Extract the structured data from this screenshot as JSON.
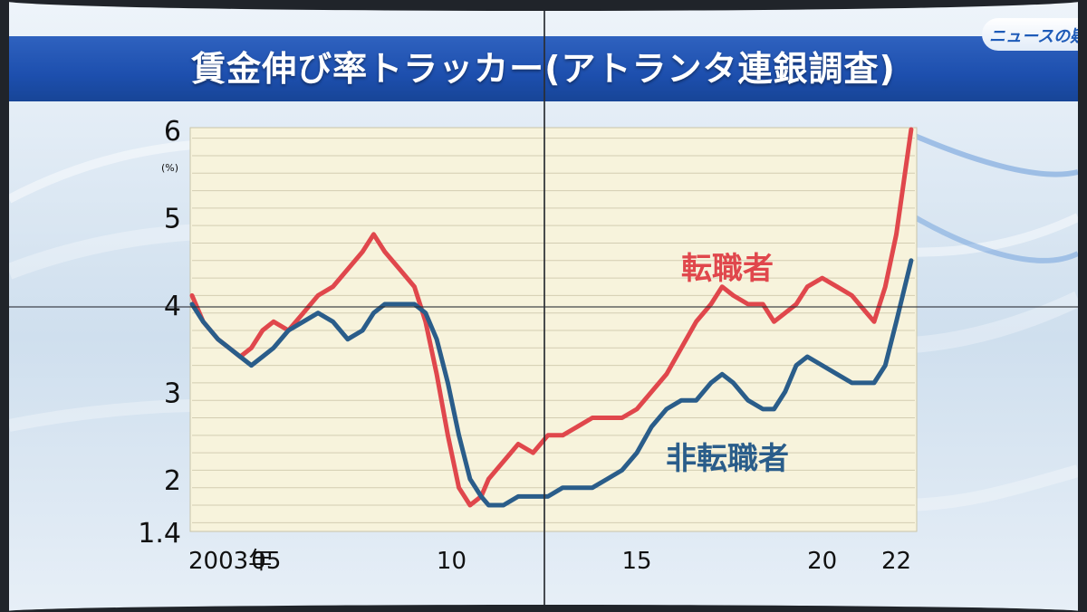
{
  "title": "賃金伸び率トラッカー(アトランタ連銀調査)",
  "logo_text": "ニュースの疑問",
  "chart_data": {
    "type": "line",
    "title": "賃金伸び率トラッカー(アトランタ連銀調査)",
    "unit_label": "(%)",
    "xlim": [
      2003,
      2022.5
    ],
    "ylim": [
      1.4,
      6.0
    ],
    "y_ticks": [
      {
        "value": 6,
        "label": "6"
      },
      {
        "value": 5,
        "label": "5"
      },
      {
        "value": 4,
        "label": "4"
      },
      {
        "value": 3,
        "label": "3"
      },
      {
        "value": 2,
        "label": "2"
      },
      {
        "value": 1.4,
        "label": "1.4"
      }
    ],
    "x_ticks": [
      {
        "value": 2003,
        "label": "2003年"
      },
      {
        "value": 2005,
        "label": "05"
      },
      {
        "value": 2010,
        "label": "10"
      },
      {
        "value": 2015,
        "label": "15"
      },
      {
        "value": 2020,
        "label": "20"
      },
      {
        "value": 2022,
        "label": "22"
      }
    ],
    "grid": "horizontal",
    "series": [
      {
        "name": "転職者",
        "color": "#e0474c",
        "points": [
          [
            2003.0,
            4.1
          ],
          [
            2003.3,
            3.8
          ],
          [
            2003.7,
            3.6
          ],
          [
            2004.0,
            3.5
          ],
          [
            2004.3,
            3.4
          ],
          [
            2004.6,
            3.5
          ],
          [
            2004.9,
            3.7
          ],
          [
            2005.2,
            3.8
          ],
          [
            2005.6,
            3.7
          ],
          [
            2006.0,
            3.9
          ],
          [
            2006.4,
            4.1
          ],
          [
            2006.8,
            4.2
          ],
          [
            2007.2,
            4.4
          ],
          [
            2007.6,
            4.6
          ],
          [
            2007.9,
            4.8
          ],
          [
            2008.2,
            4.6
          ],
          [
            2008.6,
            4.4
          ],
          [
            2009.0,
            4.2
          ],
          [
            2009.3,
            3.8
          ],
          [
            2009.6,
            3.2
          ],
          [
            2009.9,
            2.5
          ],
          [
            2010.2,
            1.9
          ],
          [
            2010.5,
            1.7
          ],
          [
            2010.8,
            1.8
          ],
          [
            2011.0,
            2.0
          ],
          [
            2011.4,
            2.2
          ],
          [
            2011.8,
            2.4
          ],
          [
            2012.2,
            2.3
          ],
          [
            2012.6,
            2.5
          ],
          [
            2013.0,
            2.5
          ],
          [
            2013.4,
            2.6
          ],
          [
            2013.8,
            2.7
          ],
          [
            2014.2,
            2.7
          ],
          [
            2014.6,
            2.7
          ],
          [
            2015.0,
            2.8
          ],
          [
            2015.4,
            3.0
          ],
          [
            2015.8,
            3.2
          ],
          [
            2016.2,
            3.5
          ],
          [
            2016.6,
            3.8
          ],
          [
            2017.0,
            4.0
          ],
          [
            2017.3,
            4.2
          ],
          [
            2017.6,
            4.1
          ],
          [
            2018.0,
            4.0
          ],
          [
            2018.4,
            4.0
          ],
          [
            2018.7,
            3.8
          ],
          [
            2019.0,
            3.9
          ],
          [
            2019.3,
            4.0
          ],
          [
            2019.6,
            4.2
          ],
          [
            2020.0,
            4.3
          ],
          [
            2020.4,
            4.2
          ],
          [
            2020.8,
            4.1
          ],
          [
            2021.2,
            3.9
          ],
          [
            2021.4,
            3.8
          ],
          [
            2021.7,
            4.2
          ],
          [
            2022.0,
            4.8
          ],
          [
            2022.4,
            6.0
          ]
        ]
      },
      {
        "name": "非転職者",
        "color": "#2a5d8a",
        "points": [
          [
            2003.0,
            4.0
          ],
          [
            2003.3,
            3.8
          ],
          [
            2003.7,
            3.6
          ],
          [
            2004.0,
            3.5
          ],
          [
            2004.3,
            3.4
          ],
          [
            2004.6,
            3.3
          ],
          [
            2004.9,
            3.4
          ],
          [
            2005.2,
            3.5
          ],
          [
            2005.6,
            3.7
          ],
          [
            2006.0,
            3.8
          ],
          [
            2006.4,
            3.9
          ],
          [
            2006.8,
            3.8
          ],
          [
            2007.2,
            3.6
          ],
          [
            2007.6,
            3.7
          ],
          [
            2007.9,
            3.9
          ],
          [
            2008.2,
            4.0
          ],
          [
            2008.6,
            4.0
          ],
          [
            2009.0,
            4.0
          ],
          [
            2009.3,
            3.9
          ],
          [
            2009.6,
            3.6
          ],
          [
            2009.9,
            3.1
          ],
          [
            2010.2,
            2.5
          ],
          [
            2010.5,
            2.0
          ],
          [
            2010.8,
            1.8
          ],
          [
            2011.0,
            1.7
          ],
          [
            2011.4,
            1.7
          ],
          [
            2011.8,
            1.8
          ],
          [
            2012.2,
            1.8
          ],
          [
            2012.6,
            1.8
          ],
          [
            2013.0,
            1.9
          ],
          [
            2013.4,
            1.9
          ],
          [
            2013.8,
            1.9
          ],
          [
            2014.2,
            2.0
          ],
          [
            2014.6,
            2.1
          ],
          [
            2015.0,
            2.3
          ],
          [
            2015.4,
            2.6
          ],
          [
            2015.8,
            2.8
          ],
          [
            2016.2,
            2.9
          ],
          [
            2016.6,
            2.9
          ],
          [
            2017.0,
            3.1
          ],
          [
            2017.3,
            3.2
          ],
          [
            2017.6,
            3.1
          ],
          [
            2018.0,
            2.9
          ],
          [
            2018.4,
            2.8
          ],
          [
            2018.7,
            2.8
          ],
          [
            2019.0,
            3.0
          ],
          [
            2019.3,
            3.3
          ],
          [
            2019.6,
            3.4
          ],
          [
            2020.0,
            3.3
          ],
          [
            2020.4,
            3.2
          ],
          [
            2020.8,
            3.1
          ],
          [
            2021.2,
            3.1
          ],
          [
            2021.4,
            3.1
          ],
          [
            2021.7,
            3.3
          ],
          [
            2022.0,
            3.8
          ],
          [
            2022.4,
            4.5
          ]
        ]
      }
    ]
  }
}
